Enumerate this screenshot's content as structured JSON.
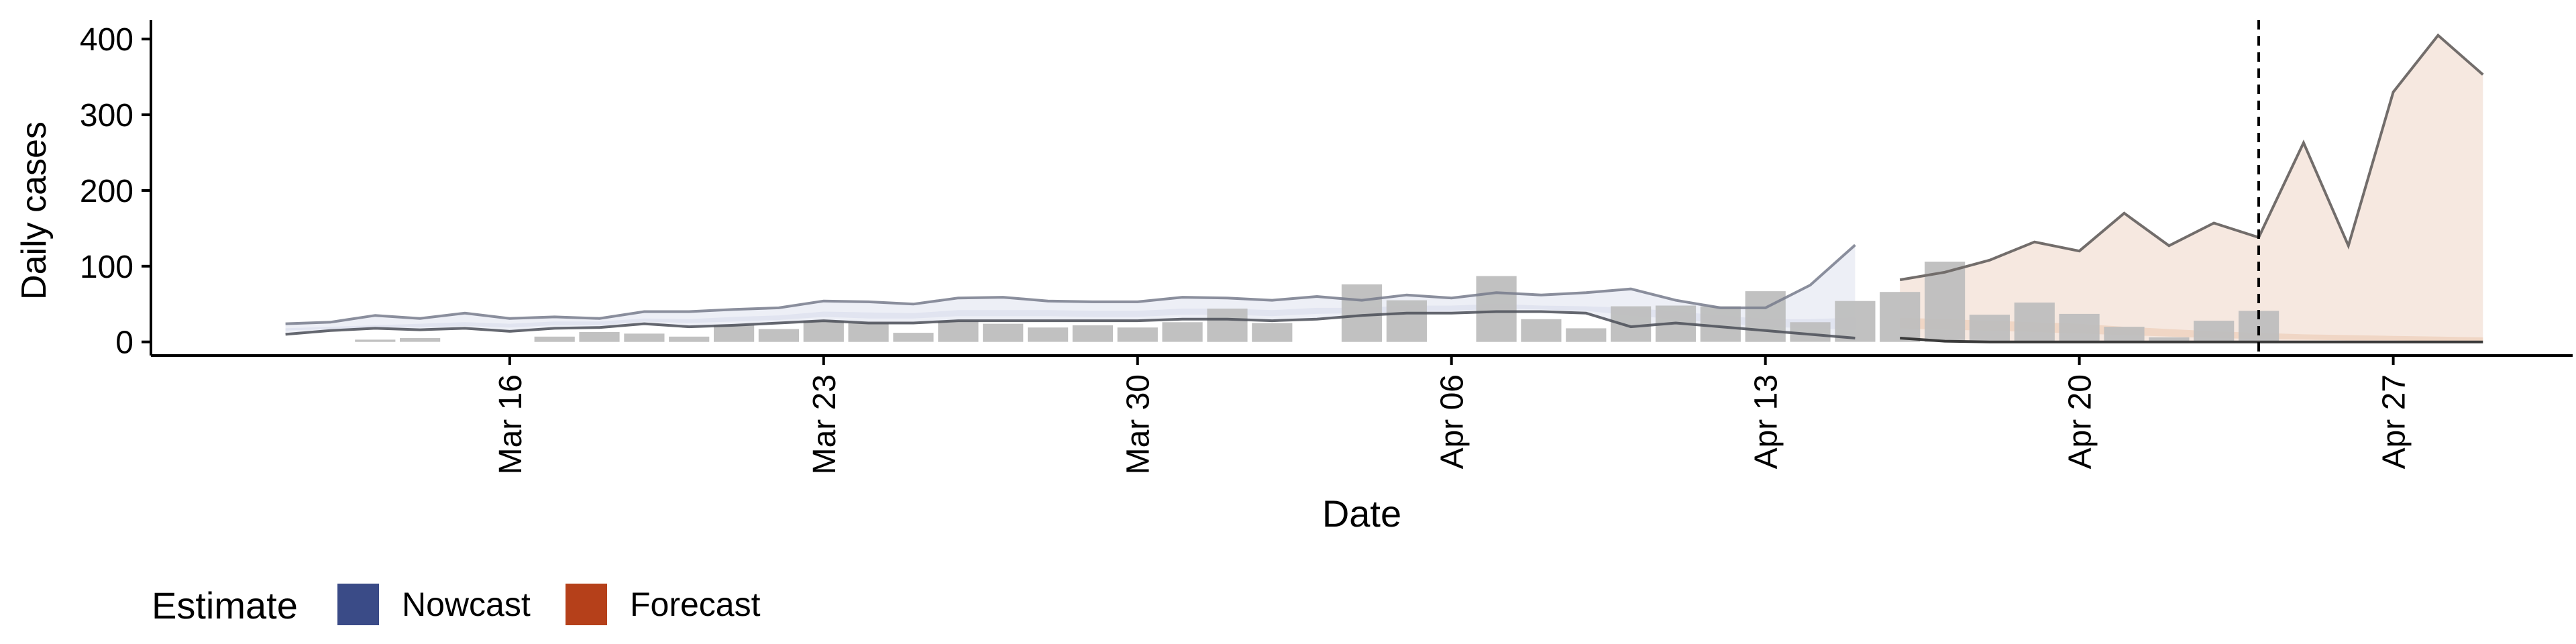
{
  "chart_data": {
    "type": "bar",
    "xlabel": "Date",
    "ylabel": "Daily cases",
    "x_axis": {
      "type": "date",
      "range": [
        "2020-03-08",
        "2020-05-01"
      ],
      "ticks": [
        {
          "date": "2020-03-16",
          "label": "Mar 16"
        },
        {
          "date": "2020-03-23",
          "label": "Mar 23"
        },
        {
          "date": "2020-03-30",
          "label": "Mar 30"
        },
        {
          "date": "2020-04-06",
          "label": "Apr 06"
        },
        {
          "date": "2020-04-13",
          "label": "Apr 13"
        },
        {
          "date": "2020-04-20",
          "label": "Apr 20"
        },
        {
          "date": "2020-04-27",
          "label": "Apr 27"
        }
      ]
    },
    "y_axis": {
      "range": [
        -18,
        425
      ],
      "ticks": [
        0,
        100,
        200,
        300,
        400
      ]
    },
    "grid": false,
    "reference_line_date": "2020-04-24",
    "legend": {
      "title": "Estimate",
      "position": "bottom-left",
      "entries": [
        {
          "label": "Nowcast",
          "color": "#3a4b87"
        },
        {
          "label": "Forecast",
          "color": "#b5401a"
        }
      ]
    },
    "colors": {
      "bars": "#bebebe",
      "nowcast_band": "#dfe2ef",
      "forecast_band": "#f5e6dd",
      "forecast_inner_band": "#efd2c0",
      "nowcast_line": "#777b8c",
      "forecast_line": "#726d6b",
      "axis": "#000000"
    },
    "bars": [
      {
        "date": "2020-03-13",
        "value": 3
      },
      {
        "date": "2020-03-14",
        "value": 5
      },
      {
        "date": "2020-03-17",
        "value": 7
      },
      {
        "date": "2020-03-18",
        "value": 13
      },
      {
        "date": "2020-03-19",
        "value": 11
      },
      {
        "date": "2020-03-20",
        "value": 7
      },
      {
        "date": "2020-03-21",
        "value": 22
      },
      {
        "date": "2020-03-22",
        "value": 17
      },
      {
        "date": "2020-03-23",
        "value": 28
      },
      {
        "date": "2020-03-24",
        "value": 25
      },
      {
        "date": "2020-03-25",
        "value": 12
      },
      {
        "date": "2020-03-26",
        "value": 28
      },
      {
        "date": "2020-03-27",
        "value": 24
      },
      {
        "date": "2020-03-28",
        "value": 19
      },
      {
        "date": "2020-03-29",
        "value": 22
      },
      {
        "date": "2020-03-30",
        "value": 19
      },
      {
        "date": "2020-03-31",
        "value": 26
      },
      {
        "date": "2020-04-01",
        "value": 44
      },
      {
        "date": "2020-04-02",
        "value": 25
      },
      {
        "date": "2020-04-04",
        "value": 76
      },
      {
        "date": "2020-04-05",
        "value": 55
      },
      {
        "date": "2020-04-07",
        "value": 87
      },
      {
        "date": "2020-04-08",
        "value": 30
      },
      {
        "date": "2020-04-09",
        "value": 18
      },
      {
        "date": "2020-04-10",
        "value": 47
      },
      {
        "date": "2020-04-11",
        "value": 48
      },
      {
        "date": "2020-04-12",
        "value": 47
      },
      {
        "date": "2020-04-13",
        "value": 67
      },
      {
        "date": "2020-04-14",
        "value": 26
      },
      {
        "date": "2020-04-15",
        "value": 54
      },
      {
        "date": "2020-04-16",
        "value": 66
      },
      {
        "date": "2020-04-17",
        "value": 106
      },
      {
        "date": "2020-04-18",
        "value": 36
      },
      {
        "date": "2020-04-19",
        "value": 52
      },
      {
        "date": "2020-04-20",
        "value": 37
      },
      {
        "date": "2020-04-21",
        "value": 20
      },
      {
        "date": "2020-04-22",
        "value": 6
      },
      {
        "date": "2020-04-23",
        "value": 28
      },
      {
        "date": "2020-04-24",
        "value": 41
      }
    ],
    "series": [
      {
        "name": "Nowcast",
        "color": "#3a4b87",
        "dates": [
          "2020-03-11",
          "2020-03-12",
          "2020-03-13",
          "2020-03-14",
          "2020-03-15",
          "2020-03-16",
          "2020-03-17",
          "2020-03-18",
          "2020-03-19",
          "2020-03-20",
          "2020-03-21",
          "2020-03-22",
          "2020-03-23",
          "2020-03-24",
          "2020-03-25",
          "2020-03-26",
          "2020-03-27",
          "2020-03-28",
          "2020-03-29",
          "2020-03-30",
          "2020-03-31",
          "2020-04-01",
          "2020-04-02",
          "2020-04-03",
          "2020-04-04",
          "2020-04-05",
          "2020-04-06",
          "2020-04-07",
          "2020-04-08",
          "2020-04-09",
          "2020-04-10",
          "2020-04-11",
          "2020-04-12",
          "2020-04-13",
          "2020-04-14",
          "2020-04-15"
        ],
        "upper": [
          24,
          26,
          35,
          31,
          38,
          31,
          33,
          31,
          40,
          40,
          43,
          45,
          54,
          53,
          50,
          58,
          59,
          54,
          53,
          53,
          59,
          58,
          55,
          60,
          55,
          62,
          58,
          65,
          62,
          65,
          70,
          55,
          45,
          45,
          75,
          128
        ],
        "lower": [
          10,
          15,
          18,
          16,
          18,
          14,
          18,
          19,
          24,
          20,
          22,
          25,
          28,
          25,
          25,
          28,
          28,
          28,
          28,
          28,
          30,
          30,
          28,
          30,
          35,
          38,
          38,
          40,
          40,
          38,
          20,
          25,
          20,
          15,
          10,
          5
        ],
        "inner_upper": [
          18,
          20,
          22,
          24,
          26,
          24,
          27,
          27,
          31,
          30,
          33,
          35,
          40,
          39,
          38,
          42,
          42,
          42,
          41,
          41,
          44,
          44,
          42,
          45,
          45,
          48,
          48,
          50,
          48,
          47,
          45,
          40,
          35,
          30,
          30,
          32
        ],
        "inner_lower": [
          15,
          17,
          19,
          19,
          21,
          19,
          22,
          22,
          27,
          25,
          27,
          29,
          33,
          31,
          31,
          34,
          34,
          34,
          33,
          33,
          36,
          36,
          34,
          37,
          38,
          41,
          41,
          44,
          43,
          41,
          35,
          30,
          25,
          20,
          18,
          16
        ]
      },
      {
        "name": "Forecast",
        "color": "#b5401a",
        "dates": [
          "2020-04-16",
          "2020-04-17",
          "2020-04-18",
          "2020-04-19",
          "2020-04-20",
          "2020-04-21",
          "2020-04-22",
          "2020-04-23",
          "2020-04-24",
          "2020-04-25",
          "2020-04-26",
          "2020-04-27",
          "2020-04-28",
          "2020-04-29"
        ],
        "upper": [
          82,
          92,
          108,
          132,
          120,
          170,
          127,
          157,
          138,
          263,
          127,
          330,
          405,
          353
        ],
        "lower": [
          5,
          1,
          0,
          0,
          0,
          0,
          0,
          0,
          0,
          0,
          0,
          0,
          0,
          0
        ],
        "inner_upper": [
          32,
          30,
          28,
          26,
          24,
          20,
          17,
          14,
          12,
          10,
          9,
          8,
          7,
          6
        ],
        "inner_lower": [
          18,
          16,
          15,
          13,
          11,
          9,
          7,
          5,
          4,
          3,
          2,
          2,
          1,
          1
        ]
      }
    ]
  }
}
